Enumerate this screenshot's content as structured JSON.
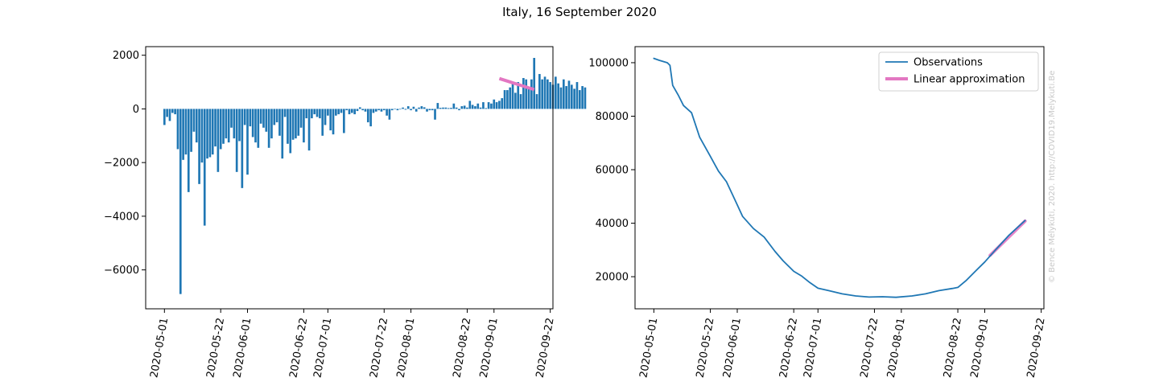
{
  "figure_title": "Italy, 16 September 2020",
  "watermark": "© Bence Mélykúti, 2020. http://COVID19.Melykuti.Be",
  "chart_data": [
    {
      "type": "bar",
      "title": "",
      "xlabel": "",
      "ylabel": "",
      "x_start": "2020-05-01",
      "x_ticks": [
        "2020-05-01",
        "2020-05-22",
        "2020-06-01",
        "2020-06-22",
        "2020-07-01",
        "2020-07-22",
        "2020-08-01",
        "2020-08-22",
        "2020-09-01",
        "2020-09-22"
      ],
      "y_ticks": [
        2000,
        0,
        -2000,
        -4000,
        -6000
      ],
      "xlim": [
        "2020-04-24",
        "2020-09-23"
      ],
      "ylim": [
        -7450,
        2320
      ],
      "bar_color": "#1f77b4",
      "values": [
        -600,
        -300,
        -450,
        -150,
        -200,
        -1500,
        -6900,
        -1900,
        -1700,
        -3100,
        -1600,
        -850,
        -1250,
        -2800,
        -2000,
        -4350,
        -1850,
        -1800,
        -1700,
        -1400,
        -2350,
        -1500,
        -1300,
        -1100,
        -1250,
        -700,
        -1100,
        -2350,
        -1200,
        -2950,
        -600,
        -2450,
        -650,
        -1050,
        -1250,
        -1450,
        -550,
        -700,
        -850,
        -1450,
        -1100,
        -600,
        -500,
        -1000,
        -1850,
        -300,
        -1300,
        -1650,
        -1150,
        -1100,
        -1000,
        -700,
        -1250,
        -350,
        -1550,
        -350,
        -200,
        -300,
        -350,
        -1000,
        -600,
        -250,
        -800,
        -950,
        -250,
        -200,
        -150,
        -900,
        -50,
        -200,
        -150,
        -200,
        -80,
        60,
        -50,
        -100,
        -500,
        -650,
        -150,
        -100,
        -50,
        -100,
        -50,
        -250,
        -400,
        -50,
        0,
        -50,
        -20,
        50,
        -30,
        100,
        -50,
        80,
        -100,
        50,
        100,
        60,
        -100,
        -50,
        -50,
        -400,
        220,
        40,
        50,
        50,
        30,
        40,
        200,
        50,
        -50,
        100,
        120,
        50,
        300,
        150,
        100,
        200,
        50,
        250,
        30,
        250,
        200,
        350,
        250,
        300,
        400,
        700,
        700,
        800,
        950,
        600,
        1000,
        550,
        1150,
        1100,
        800,
        1100,
        1900,
        550,
        1300,
        1100,
        1200,
        1100,
        1000,
        900,
        1200,
        950,
        800,
        1100,
        850,
        1050,
        900,
        750,
        1000,
        700,
        850,
        800
      ]
    },
    {
      "type": "line",
      "title": "",
      "xlabel": "",
      "ylabel": "",
      "x_ticks": [
        "2020-05-01",
        "2020-05-22",
        "2020-06-01",
        "2020-06-22",
        "2020-07-01",
        "2020-07-22",
        "2020-08-01",
        "2020-08-22",
        "2020-09-01",
        "2020-09-22"
      ],
      "y_ticks": [
        100000,
        80000,
        60000,
        40000,
        20000
      ],
      "xlim": [
        "2020-04-24",
        "2020-09-23"
      ],
      "ylim": [
        8000,
        106000
      ],
      "legend_position": "top-right",
      "series": [
        {
          "name": "Observations",
          "color": "#1f77b4",
          "points": [
            [
              "2020-05-01",
              101600
            ],
            [
              "2020-05-03",
              100900
            ],
            [
              "2020-05-06",
              100000
            ],
            [
              "2020-05-07",
              99000
            ],
            [
              "2020-05-08",
              91500
            ],
            [
              "2020-05-10",
              88000
            ],
            [
              "2020-05-12",
              84000
            ],
            [
              "2020-05-15",
              81300
            ],
            [
              "2020-05-18",
              72200
            ],
            [
              "2020-05-22",
              65000
            ],
            [
              "2020-05-25",
              59500
            ],
            [
              "2020-05-28",
              55500
            ],
            [
              "2020-05-31",
              49000
            ],
            [
              "2020-06-03",
              42500
            ],
            [
              "2020-06-07",
              38000
            ],
            [
              "2020-06-11",
              34800
            ],
            [
              "2020-06-15",
              29500
            ],
            [
              "2020-06-18",
              26000
            ],
            [
              "2020-06-22",
              22000
            ],
            [
              "2020-06-25",
              20200
            ],
            [
              "2020-06-28",
              17800
            ],
            [
              "2020-07-01",
              15700
            ],
            [
              "2020-07-05",
              14800
            ],
            [
              "2020-07-10",
              13600
            ],
            [
              "2020-07-15",
              12800
            ],
            [
              "2020-07-20",
              12400
            ],
            [
              "2020-07-25",
              12500
            ],
            [
              "2020-07-30",
              12300
            ],
            [
              "2020-08-05",
              12800
            ],
            [
              "2020-08-10",
              13600
            ],
            [
              "2020-08-15",
              14800
            ],
            [
              "2020-08-20",
              15600
            ],
            [
              "2020-08-22",
              16000
            ],
            [
              "2020-08-25",
              18500
            ],
            [
              "2020-08-29",
              22500
            ],
            [
              "2020-09-01",
              25500
            ],
            [
              "2020-09-05",
              30000
            ],
            [
              "2020-09-10",
              35500
            ],
            [
              "2020-09-16",
              41000
            ]
          ]
        },
        {
          "name": "Linear approximation",
          "color": "#e377c2",
          "points": [
            [
              "2020-09-03",
              28000
            ],
            [
              "2020-09-16",
              40800
            ]
          ]
        }
      ]
    }
  ],
  "bar_fit": {
    "name": "Linear approximation",
    "color": "#e377c2",
    "points": [
      [
        "2020-09-03",
        1130
      ],
      [
        "2020-09-16",
        720
      ]
    ]
  }
}
